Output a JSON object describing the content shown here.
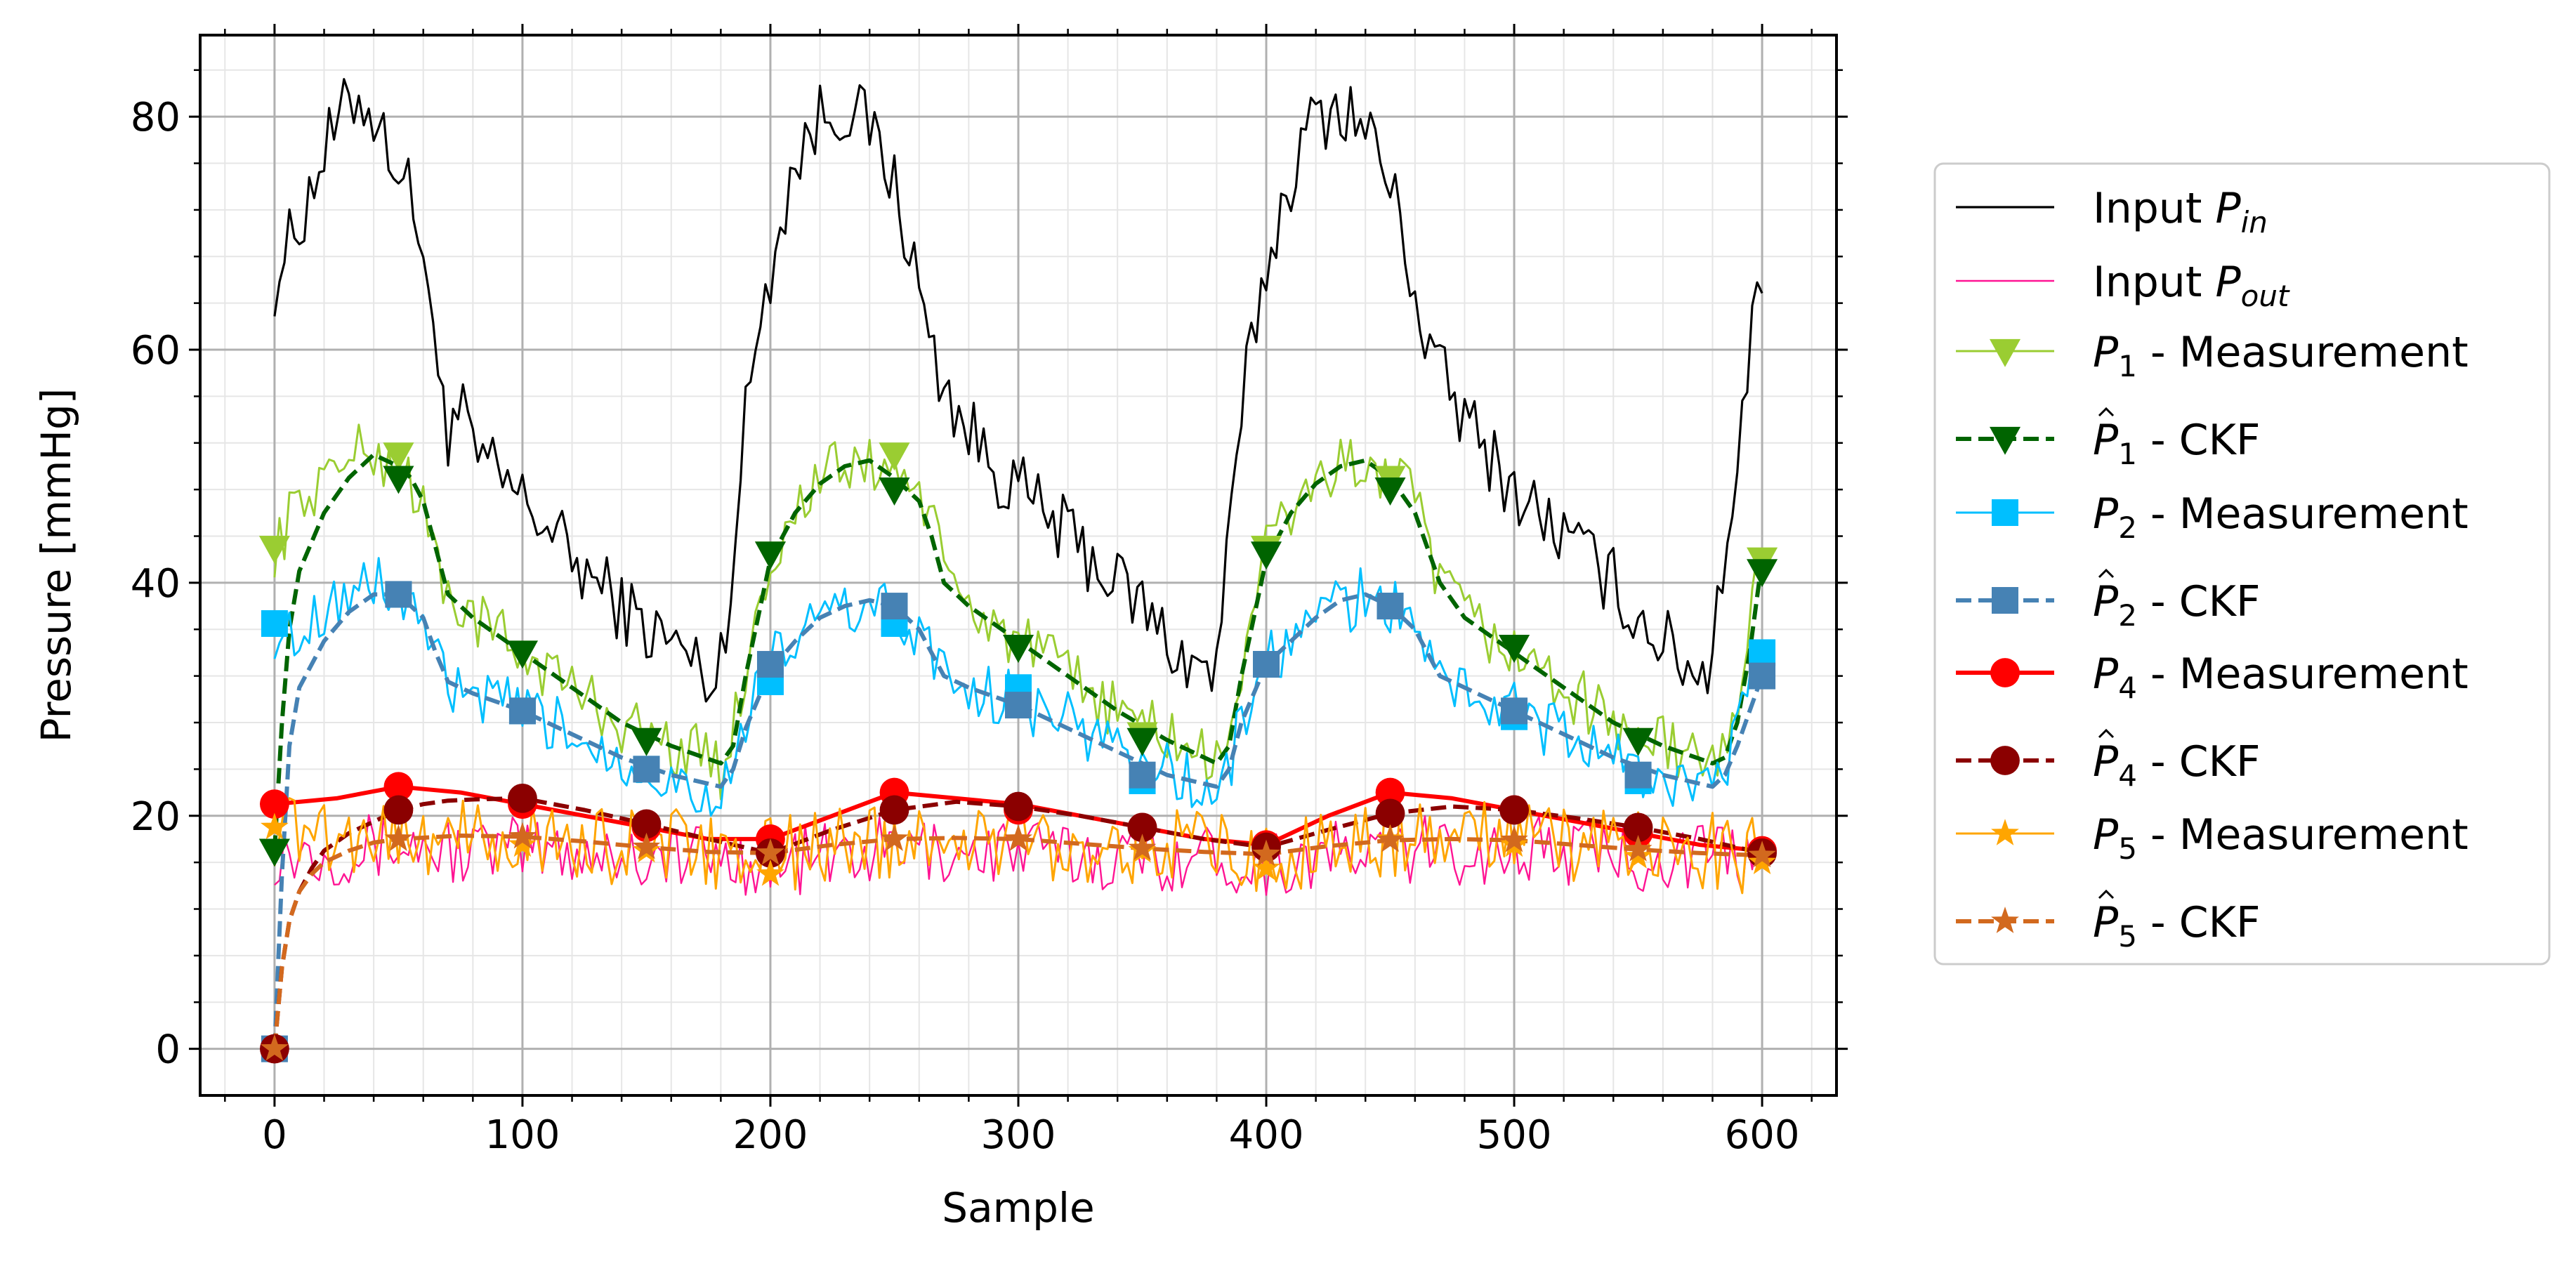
{
  "chart_data": {
    "type": "line",
    "title": "",
    "xlabel": "Sample",
    "ylabel": "Pressure [mmHg]",
    "xlim": [
      -30,
      630
    ],
    "ylim": [
      -4,
      87
    ],
    "xticks": [
      0,
      100,
      200,
      300,
      400,
      500,
      600
    ],
    "yticks": [
      0,
      20,
      40,
      60,
      80
    ],
    "xtick_labels": [
      "0",
      "100",
      "200",
      "300",
      "400",
      "500",
      "600"
    ],
    "ytick_labels": [
      "0",
      "20",
      "40",
      "60",
      "80"
    ],
    "grid": true,
    "legend_position": "outside-right",
    "marker_x": [
      0,
      50,
      100,
      150,
      200,
      250,
      300,
      350,
      400,
      450,
      500,
      550,
      600
    ],
    "series": [
      {
        "name": "Input P_in",
        "legend_main": "Input ",
        "legend_sym": "P",
        "legend_sub": "in",
        "legend_hat": false,
        "legend_tail": "",
        "color": "#000000",
        "dash": "solid",
        "marker": "none",
        "width": 3.2,
        "x": [
          0,
          10,
          20,
          30,
          35,
          40,
          45,
          50,
          55,
          60,
          63,
          65,
          68,
          70,
          75,
          80,
          90,
          100,
          110,
          120,
          130,
          140,
          150,
          160,
          170,
          178,
          180,
          185,
          190,
          195,
          200,
          205,
          210,
          220,
          230,
          235,
          240,
          245,
          250,
          255,
          260,
          265,
          270,
          275,
          280,
          290,
          300,
          310,
          320,
          330,
          340,
          350,
          360,
          370,
          378,
          380,
          385,
          390,
          395,
          400,
          405,
          410,
          420,
          430,
          435,
          440,
          445,
          450,
          455,
          460,
          465,
          470,
          475,
          480,
          490,
          500,
          510,
          520,
          530,
          540,
          550,
          560,
          570,
          578,
          580,
          585,
          590,
          595,
          600
        ],
        "values": [
          66,
          71,
          77,
          81,
          82,
          80,
          78,
          76,
          73,
          69,
          63,
          57,
          58,
          53,
          55,
          51,
          49,
          47,
          45,
          42,
          40,
          38,
          36,
          35,
          33,
          31,
          34,
          42,
          54,
          62,
          67,
          72,
          76,
          80,
          81,
          80,
          79,
          77,
          74,
          70,
          65,
          60,
          57,
          55,
          53,
          50,
          48,
          46,
          44,
          42,
          40,
          38,
          35,
          33,
          32,
          34,
          43,
          54,
          62,
          67,
          71,
          75,
          80,
          81,
          80,
          79,
          77,
          74,
          70,
          65,
          60,
          58,
          56,
          54,
          51,
          48,
          46,
          44,
          42,
          40,
          37,
          35,
          33,
          32,
          36,
          43,
          50,
          60,
          67
        ]
      },
      {
        "name": "Input P_out",
        "legend_main": "Input ",
        "legend_sym": "P",
        "legend_sub": "out",
        "legend_hat": false,
        "legend_tail": "",
        "color": "#ff1493",
        "dash": "solid",
        "marker": "none",
        "width": 2.4,
        "x": [
          0,
          25,
          50,
          75,
          100,
          125,
          150,
          175,
          200,
          225,
          250,
          275,
          300,
          325,
          350,
          375,
          400,
          425,
          450,
          475,
          500,
          525,
          550,
          575,
          600
        ],
        "values": [
          17,
          17,
          17.5,
          17,
          17,
          17,
          16.5,
          16.5,
          16,
          16.5,
          17,
          17,
          17,
          16.5,
          16.5,
          16.5,
          16,
          16.5,
          17,
          17,
          17,
          17,
          16.5,
          16.5,
          16
        ]
      },
      {
        "name": "P1 - Measurement",
        "legend_main": "",
        "legend_sym": "P",
        "legend_sub": "1",
        "legend_hat": false,
        "legend_tail": " - Measurement",
        "color": "#9acd32",
        "dash": "solid",
        "marker": "tri-down",
        "width": 3,
        "x": [
          0,
          5,
          10,
          20,
          30,
          40,
          50,
          55,
          60,
          65,
          70,
          80,
          100,
          120,
          140,
          160,
          175,
          180,
          185,
          190,
          200,
          210,
          220,
          230,
          240,
          250,
          260,
          265,
          270,
          280,
          300,
          320,
          340,
          360,
          375,
          380,
          385,
          390,
          400,
          410,
          420,
          430,
          440,
          450,
          460,
          465,
          470,
          480,
          500,
          520,
          540,
          560,
          575,
          580,
          585,
          590,
          595,
          600
        ],
        "values": [
          43,
          45,
          47,
          49,
          51,
          51,
          50,
          49,
          46,
          42,
          39,
          37,
          34,
          31,
          28,
          26,
          25,
          24,
          27,
          33,
          42,
          46,
          49,
          50,
          50,
          50,
          48,
          45,
          41,
          38,
          35,
          32,
          29,
          27,
          25,
          24,
          27,
          33,
          43,
          46,
          49,
          50,
          50,
          49,
          47,
          43,
          40,
          37,
          34,
          31,
          28,
          26,
          25,
          24,
          26,
          30,
          36,
          43
        ],
        "marker_values": [
          43,
          51,
          34,
          26.5,
          42.5,
          51,
          34.5,
          27,
          43,
          49,
          34.5,
          26.5,
          42
        ]
      },
      {
        "name": "P1 hat - CKF",
        "legend_main": "",
        "legend_sym": "P",
        "legend_sub": "1",
        "legend_hat": true,
        "legend_tail": " - CKF",
        "color": "#006400",
        "dash": "dashed",
        "marker": "tri-down",
        "width": 6,
        "x": [
          0,
          3,
          6,
          10,
          20,
          30,
          40,
          50,
          55,
          60,
          65,
          70,
          80,
          100,
          120,
          140,
          160,
          180,
          185,
          190,
          200,
          210,
          220,
          230,
          240,
          250,
          260,
          265,
          270,
          280,
          300,
          320,
          340,
          360,
          380,
          385,
          390,
          400,
          410,
          420,
          430,
          440,
          450,
          460,
          465,
          470,
          480,
          500,
          520,
          540,
          560,
          580,
          585,
          590,
          595,
          600
        ],
        "values": [
          17,
          28,
          36,
          41,
          46,
          49,
          51,
          50,
          49,
          47,
          43,
          39,
          37,
          34,
          31,
          28,
          26,
          24.5,
          26,
          32,
          42,
          46,
          48.5,
          50,
          50.5,
          49,
          47,
          44,
          40,
          38,
          35,
          32,
          29,
          26.5,
          24.5,
          26,
          32,
          42,
          46,
          48.5,
          50,
          50.5,
          49,
          46,
          43,
          40,
          37,
          34,
          31,
          28,
          26,
          24.5,
          25,
          28,
          34,
          42
        ],
        "marker_values": [
          17,
          49,
          34,
          26.5,
          42.5,
          48,
          34.5,
          26.5,
          42.5,
          48,
          34.5,
          26.5,
          41
        ]
      },
      {
        "name": "P2 - Measurement",
        "legend_main": "",
        "legend_sym": "P",
        "legend_sub": "2",
        "legend_hat": false,
        "legend_tail": " - Measurement",
        "color": "#00bfff",
        "dash": "solid",
        "marker": "square",
        "width": 3,
        "x": [
          0,
          5,
          10,
          20,
          30,
          40,
          50,
          60,
          65,
          70,
          80,
          100,
          120,
          140,
          160,
          175,
          180,
          185,
          190,
          200,
          210,
          220,
          230,
          240,
          250,
          260,
          265,
          270,
          280,
          300,
          320,
          340,
          360,
          375,
          380,
          385,
          390,
          400,
          410,
          420,
          430,
          440,
          450,
          460,
          465,
          470,
          480,
          500,
          520,
          540,
          560,
          575,
          580,
          585,
          590,
          595,
          600
        ],
        "values": [
          36,
          35,
          36,
          38,
          39,
          40,
          39,
          37,
          33,
          31,
          30,
          29,
          27,
          25,
          23,
          22,
          22,
          24,
          28,
          33,
          35,
          37,
          38,
          38,
          37,
          36,
          34,
          32,
          31,
          30,
          28,
          26,
          24,
          22,
          22,
          24,
          28,
          33,
          35,
          37,
          38,
          39,
          38,
          36,
          34,
          32,
          31,
          29,
          27,
          25,
          23,
          22,
          22,
          24,
          27,
          31,
          34
        ],
        "marker_values": [
          36.5,
          39,
          29,
          24,
          31.5,
          36.5,
          31,
          23,
          33,
          38,
          28.5,
          23,
          34
        ]
      },
      {
        "name": "P2 hat - CKF",
        "legend_main": "",
        "legend_sym": "P",
        "legend_sub": "2",
        "legend_hat": true,
        "legend_tail": " - CKF",
        "color": "#4682b4",
        "dash": "dashed",
        "marker": "square",
        "width": 6,
        "x": [
          0,
          3,
          6,
          10,
          20,
          30,
          40,
          50,
          60,
          65,
          70,
          80,
          100,
          120,
          140,
          160,
          180,
          185,
          190,
          200,
          210,
          220,
          230,
          240,
          250,
          260,
          265,
          270,
          280,
          300,
          320,
          340,
          360,
          380,
          385,
          390,
          400,
          410,
          420,
          430,
          440,
          450,
          460,
          465,
          470,
          480,
          500,
          520,
          540,
          560,
          580,
          585,
          590,
          595,
          600
        ],
        "values": [
          0,
          15,
          26,
          31,
          35,
          37.5,
          39,
          39,
          37,
          34,
          31.5,
          30.5,
          29,
          27,
          25,
          23.5,
          22.5,
          24,
          27.5,
          32.5,
          35,
          37,
          38,
          38.5,
          38,
          36,
          34,
          32,
          31,
          29.5,
          27.5,
          25.5,
          23.5,
          22.5,
          24,
          28,
          33,
          35,
          37,
          38.5,
          39,
          38,
          36,
          34,
          32,
          31,
          29,
          27,
          25,
          23.5,
          22.5,
          23.5,
          26,
          29,
          32
        ],
        "marker_values": [
          0,
          39,
          29,
          24,
          33,
          38,
          29.5,
          23.5,
          33,
          38,
          29,
          23.5,
          32
        ]
      },
      {
        "name": "P4 - Measurement",
        "legend_main": "",
        "legend_sym": "P",
        "legend_sub": "4",
        "legend_hat": false,
        "legend_tail": " - Measurement",
        "color": "#ff0000",
        "dash": "solid",
        "marker": "circle",
        "width": 6,
        "x": [
          0,
          25,
          50,
          75,
          100,
          125,
          150,
          175,
          200,
          225,
          250,
          275,
          300,
          325,
          350,
          375,
          400,
          425,
          450,
          475,
          500,
          525,
          550,
          575,
          600
        ],
        "values": [
          21,
          21.5,
          22.5,
          22,
          21,
          20,
          19,
          18,
          18,
          20,
          22,
          21.5,
          21,
          20,
          19,
          18,
          17.5,
          20,
          22,
          21.5,
          20.5,
          19.5,
          18.5,
          17.5,
          17
        ],
        "marker_values": [
          21,
          22.5,
          21,
          19,
          18,
          22,
          20.5,
          19,
          17.5,
          22,
          20.5,
          18.5,
          17
        ]
      },
      {
        "name": "P4 hat - CKF",
        "legend_main": "",
        "legend_sym": "P",
        "legend_sub": "4",
        "legend_hat": true,
        "legend_tail": " - CKF",
        "color": "#8b0000",
        "dash": "dashed",
        "marker": "circle",
        "width": 6,
        "x": [
          0,
          3,
          6,
          10,
          15,
          20,
          30,
          40,
          50,
          60,
          70,
          80,
          100,
          125,
          150,
          175,
          200,
          225,
          250,
          275,
          300,
          325,
          350,
          375,
          400,
          425,
          450,
          475,
          500,
          525,
          550,
          575,
          600
        ],
        "values": [
          0,
          7,
          11,
          13.5,
          15.5,
          17,
          18.5,
          19.5,
          20.5,
          21,
          21.3,
          21.4,
          21.5,
          20.5,
          19.3,
          18,
          16.8,
          18.8,
          20.5,
          21.2,
          20.8,
          20,
          19,
          18,
          17.3,
          18.8,
          20.2,
          20.8,
          20.5,
          19.8,
          19,
          18,
          16.8
        ],
        "marker_values": [
          0,
          20.5,
          21.5,
          19.3,
          16.8,
          20.5,
          20.8,
          19,
          17.3,
          20.2,
          20.5,
          19,
          16.8
        ]
      },
      {
        "name": "P5 - Measurement",
        "legend_main": "",
        "legend_sym": "P",
        "legend_sub": "5",
        "legend_hat": false,
        "legend_tail": " - Measurement",
        "color": "#ffa500",
        "dash": "solid",
        "marker": "star",
        "width": 3,
        "x": [
          0,
          25,
          50,
          75,
          100,
          125,
          150,
          175,
          200,
          225,
          250,
          275,
          300,
          325,
          350,
          375,
          400,
          425,
          450,
          475,
          500,
          525,
          550,
          575,
          600
        ],
        "values": [
          19,
          18.5,
          18.5,
          18,
          18,
          17.5,
          17.5,
          17,
          16.5,
          17.5,
          18,
          18,
          18,
          17.5,
          17.5,
          17,
          16.5,
          17.5,
          18,
          18,
          18,
          17.5,
          17.5,
          17,
          16.5
        ],
        "marker_values": [
          19,
          18,
          17.5,
          17,
          15,
          18,
          18,
          17,
          15.5,
          18,
          17.5,
          16.5,
          16
        ]
      },
      {
        "name": "P5 hat - CKF",
        "legend_main": "",
        "legend_sym": "P",
        "legend_sub": "5",
        "legend_hat": true,
        "legend_tail": " - CKF",
        "color": "#d2691e",
        "dash": "dashed",
        "marker": "star",
        "width": 6,
        "x": [
          0,
          3,
          6,
          10,
          15,
          20,
          30,
          40,
          50,
          75,
          100,
          125,
          150,
          175,
          200,
          225,
          250,
          275,
          300,
          325,
          350,
          375,
          400,
          425,
          450,
          475,
          500,
          525,
          550,
          575,
          600
        ],
        "values": [
          0,
          7,
          11,
          13.5,
          15,
          16,
          17,
          17.7,
          18,
          18.3,
          18.2,
          17.8,
          17.3,
          16.9,
          16.8,
          17.5,
          18,
          18.1,
          18,
          17.6,
          17.2,
          16.9,
          16.7,
          17.4,
          17.9,
          18,
          17.9,
          17.5,
          17.1,
          16.8,
          16.6
        ],
        "marker_values": [
          0,
          18,
          18.2,
          17.3,
          16.8,
          18,
          18,
          17.2,
          16.7,
          17.9,
          17.9,
          17.1,
          16.6
        ]
      }
    ]
  }
}
